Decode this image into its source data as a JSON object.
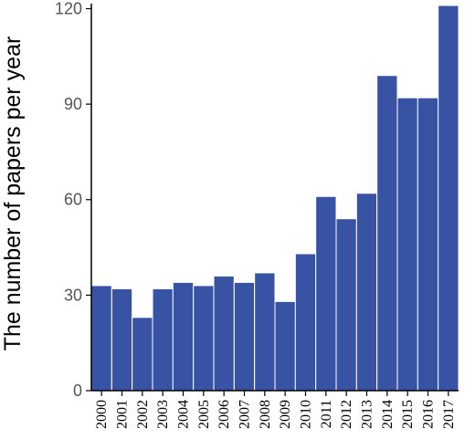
{
  "chart_data": {
    "type": "bar",
    "title": "",
    "xlabel": "",
    "ylabel": "The number of papers per year",
    "categories": [
      "2000",
      "2001",
      "2002",
      "2003",
      "2004",
      "2005",
      "2006",
      "2007",
      "2008",
      "2009",
      "2010",
      "2011",
      "2012",
      "2013",
      "2014",
      "2015",
      "2016",
      "2017"
    ],
    "values": [
      33,
      32,
      23,
      32,
      34,
      33,
      36,
      34,
      37,
      28,
      43,
      61,
      54,
      62,
      99,
      92,
      92,
      121
    ],
    "ylim": [
      0,
      121
    ],
    "yticks": [
      0,
      30,
      60,
      90,
      120
    ],
    "grid": false,
    "bar_color": "#3953a4"
  }
}
